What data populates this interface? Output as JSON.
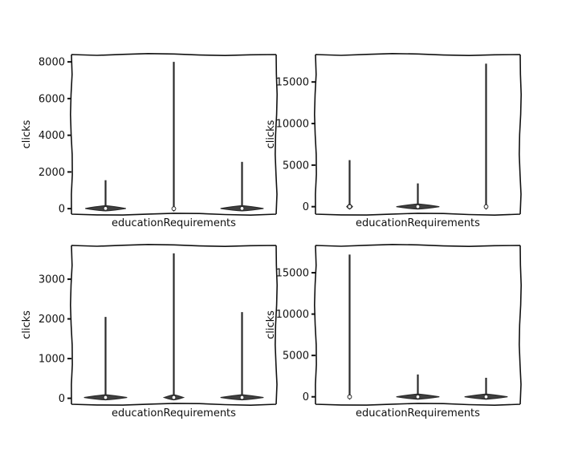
{
  "chart_data": [
    {
      "type": "violin",
      "title": "",
      "xlabel": "educationRequirements",
      "ylabel": "clicks",
      "ylim": [
        -300,
        8400
      ],
      "yticks": [
        0,
        2000,
        4000,
        6000,
        8000
      ],
      "series": [
        {
          "min": 0,
          "max": 1550,
          "median": 10,
          "width": 0.85
        },
        {
          "min": 0,
          "max": 8000,
          "median": 0,
          "width": 0.05
        },
        {
          "min": 0,
          "max": 2550,
          "median": 10,
          "width": 0.9
        }
      ]
    },
    {
      "type": "violin",
      "title": "",
      "xlabel": "educationRequirements",
      "ylabel": "clicks",
      "ylim": [
        -900,
        18300
      ],
      "yticks": [
        0,
        5000,
        10000,
        15000
      ],
      "series": [
        {
          "min": 0,
          "max": 5600,
          "median": 0,
          "width": 0.12
        },
        {
          "min": 0,
          "max": 2800,
          "median": 0,
          "width": 0.9
        },
        {
          "min": 0,
          "max": 17200,
          "median": 0,
          "width": 0.05
        }
      ]
    },
    {
      "type": "violin",
      "title": "",
      "xlabel": "educationRequirements",
      "ylabel": "clicks",
      "ylim": [
        -150,
        3850
      ],
      "yticks": [
        0,
        1000,
        2000,
        3000
      ],
      "series": [
        {
          "min": 0,
          "max": 2050,
          "median": 20,
          "width": 0.9
        },
        {
          "min": 0,
          "max": 3650,
          "median": 20,
          "width": 0.4
        },
        {
          "min": 0,
          "max": 2170,
          "median": 20,
          "width": 0.9
        }
      ]
    },
    {
      "type": "violin",
      "title": "",
      "xlabel": "educationRequirements",
      "ylabel": "clicks",
      "ylim": [
        -900,
        18300
      ],
      "yticks": [
        0,
        5000,
        10000,
        15000
      ],
      "series": [
        {
          "min": 0,
          "max": 17200,
          "median": 0,
          "width": 0.05
        },
        {
          "min": 0,
          "max": 2700,
          "median": 0,
          "width": 0.9
        },
        {
          "min": 0,
          "max": 2300,
          "median": 0,
          "width": 0.9
        }
      ]
    }
  ]
}
